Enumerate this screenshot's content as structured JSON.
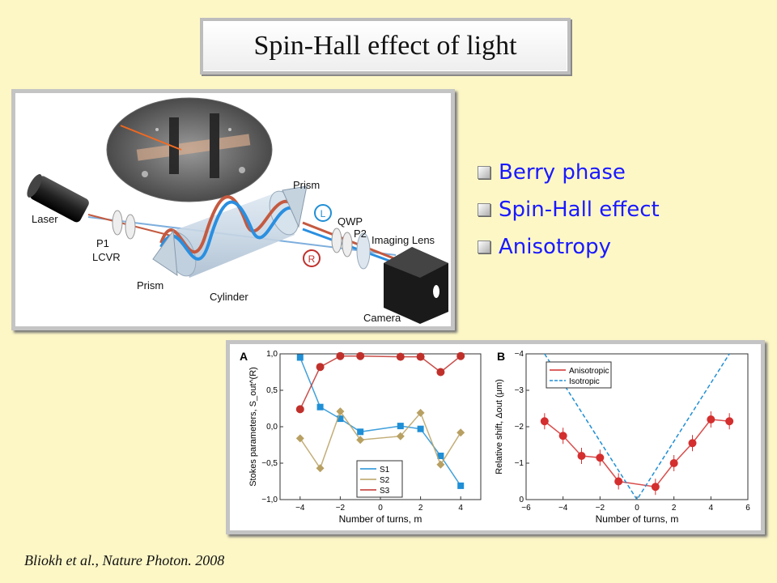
{
  "slide": {
    "title": "Spin-Hall effect of light",
    "bullets": [
      "Berry phase",
      "Spin-Hall effect",
      "Anisotropy"
    ],
    "citation": "Bliokh et al., Nature Photon. 2008"
  },
  "setup_figure": {
    "labels": {
      "laser": "Laser",
      "p1": "P1",
      "lcvr": "LCVR",
      "prism_left": "Prism",
      "prism_right": "Prism",
      "cylinder": "Cylinder",
      "qwp": "QWP",
      "p2": "P2",
      "imaging_lens": "Imaging Lens",
      "camera": "Camera",
      "left_pol": "L",
      "right_pol": "R"
    }
  },
  "chart_data": [
    {
      "panel_label": "A",
      "type": "line",
      "xlabel": "Number of turns, m",
      "ylabel": "Stokes parameters, S_out^(R)",
      "xlim": [
        -5,
        5
      ],
      "ylim": [
        -1,
        1
      ],
      "xticks": [
        "−4",
        "−2",
        "0",
        "2",
        "4"
      ],
      "yticks": [
        "1,0",
        "0,5",
        "0,0",
        "−0,5",
        "−1,0"
      ],
      "legend": [
        "S1",
        "S2",
        "S3"
      ],
      "series": [
        {
          "name": "S1",
          "color": "#1f8fd6",
          "marker": "square",
          "points": [
            [
              -4,
              0.95
            ],
            [
              -3,
              0.27
            ],
            [
              -2,
              0.11
            ],
            [
              -1,
              -0.07
            ],
            [
              1,
              0.01
            ],
            [
              2,
              -0.03
            ],
            [
              3,
              -0.4
            ],
            [
              4,
              -0.81
            ]
          ]
        },
        {
          "name": "S2",
          "color": "#b8a062",
          "marker": "diamond",
          "points": [
            [
              -4,
              -0.16
            ],
            [
              -3,
              -0.57
            ],
            [
              -2,
              0.21
            ],
            [
              -1,
              -0.18
            ],
            [
              1,
              -0.13
            ],
            [
              2,
              0.19
            ],
            [
              3,
              -0.52
            ],
            [
              4,
              -0.08
            ]
          ]
        },
        {
          "name": "S3",
          "color": "#c0302b",
          "marker": "circle",
          "points": [
            [
              -4,
              0.24
            ],
            [
              -3,
              0.82
            ],
            [
              -2,
              0.97
            ],
            [
              -1,
              0.97
            ],
            [
              1,
              0.96
            ],
            [
              2,
              0.96
            ],
            [
              3,
              0.75
            ],
            [
              4,
              0.97
            ]
          ]
        }
      ]
    },
    {
      "panel_label": "B",
      "type": "line",
      "xlabel": "Number of turns, m",
      "ylabel": "Relative shift, Δout (μm)",
      "xlim": [
        -6,
        6
      ],
      "ylim": [
        0,
        -4
      ],
      "xticks": [
        "−6",
        "−4",
        "−2",
        "0",
        "2",
        "4",
        "6"
      ],
      "yticks": [
        "−4",
        "−3",
        "−2",
        "−1",
        "0"
      ],
      "legend": [
        "Anisotropic",
        "Isotropic"
      ],
      "series": [
        {
          "name": "Anisotropic",
          "color": "#d42e2e",
          "points": [
            [
              -5,
              -2.15
            ],
            [
              -4,
              -1.75
            ],
            [
              -3,
              -1.2
            ],
            [
              -2,
              -1.15
            ],
            [
              -1,
              -0.5
            ],
            [
              1,
              -0.35
            ],
            [
              2,
              -1.0
            ],
            [
              3,
              -1.55
            ],
            [
              4,
              -2.2
            ],
            [
              5,
              -2.15
            ]
          ]
        },
        {
          "name": "Isotropic",
          "color": "#1f8fd6",
          "dashed": true,
          "line": [
            [
              -5,
              -4
            ],
            [
              0,
              0
            ],
            [
              5,
              -4
            ]
          ]
        }
      ]
    }
  ]
}
